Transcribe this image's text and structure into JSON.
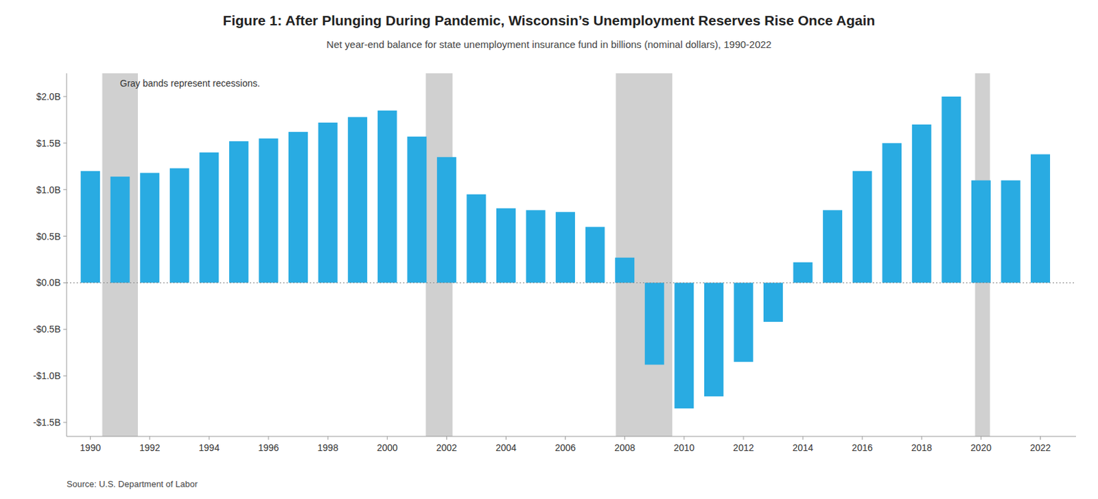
{
  "chart_data": {
    "type": "bar",
    "title": "Figure 1: After Plunging During Pandemic, Wisconsin’s Unemployment Reserves Rise Once Again",
    "subtitle": "Net year-end balance for state unemployment insurance fund in billions (nominal dollars), 1990-2022",
    "source": "Source: U.S. Department of Labor",
    "annotations": [
      "Gray bands represent recessions."
    ],
    "x": [
      1990,
      1991,
      1992,
      1993,
      1994,
      1995,
      1996,
      1997,
      1998,
      1999,
      2000,
      2001,
      2002,
      2003,
      2004,
      2005,
      2006,
      2007,
      2008,
      2009,
      2010,
      2011,
      2012,
      2013,
      2014,
      2015,
      2016,
      2017,
      2018,
      2019,
      2020,
      2021,
      2022
    ],
    "values": [
      1.2,
      1.14,
      1.18,
      1.23,
      1.4,
      1.52,
      1.55,
      1.62,
      1.72,
      1.78,
      1.85,
      1.57,
      1.35,
      0.95,
      0.8,
      0.78,
      0.76,
      0.6,
      0.27,
      -0.88,
      -1.35,
      -1.22,
      -0.85,
      -0.42,
      0.22,
      0.78,
      1.2,
      1.5,
      1.7,
      2.0,
      1.1,
      1.1,
      1.38
    ],
    "color": "#29ABE2",
    "recessions": [
      {
        "start": 1990.4,
        "end": 1991.6
      },
      {
        "start": 2001.3,
        "end": 2002.2
      },
      {
        "start": 2007.7,
        "end": 2009.6
      },
      {
        "start": 2019.8,
        "end": 2020.3
      }
    ],
    "xlim": [
      1989.2,
      2023.2
    ],
    "xticks": [
      1990,
      1992,
      1994,
      1996,
      1998,
      2000,
      2002,
      2004,
      2006,
      2008,
      2010,
      2012,
      2014,
      2016,
      2018,
      2020,
      2022
    ],
    "ylim": [
      -1.65,
      2.25
    ],
    "yticks": [
      {
        "value": -1.5,
        "label": "-$1.5B"
      },
      {
        "value": -1.0,
        "label": "-$1.0B"
      },
      {
        "value": -0.5,
        "label": "-$0.5B"
      },
      {
        "value": 0.0,
        "label": "$0.0B"
      },
      {
        "value": 0.5,
        "label": "$0.5B"
      },
      {
        "value": 1.0,
        "label": "$1.0B"
      },
      {
        "value": 1.5,
        "label": "$1.5B"
      },
      {
        "value": 2.0,
        "label": "$2.0B"
      }
    ],
    "grid": false
  }
}
